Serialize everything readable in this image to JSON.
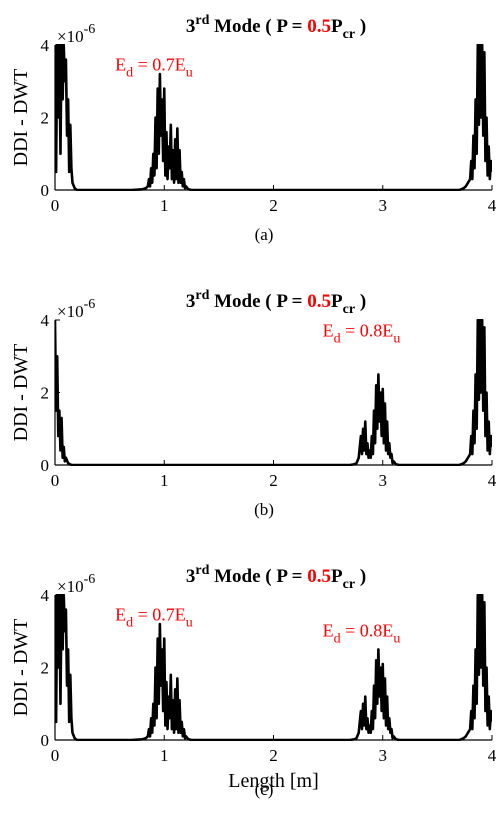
{
  "figure": {
    "xlabel": "Length [m]",
    "ylabel": "DDI - DWT",
    "y_multiplier": "×10",
    "y_multiplier_exp": "-6",
    "xticks": [
      "0",
      "1",
      "2",
      "3",
      "4"
    ],
    "yticks": [
      "0",
      "2",
      "4"
    ]
  },
  "chart_data": [
    {
      "type": "line",
      "panel_label": "(a)",
      "title": {
        "mode_num": "3",
        "mode_sup": "rd",
        "mode_word": " Mode ( P = ",
        "ratio": "0.5",
        "p": "P",
        "p_sub": "cr",
        "close": " )"
      },
      "xlim": [
        0,
        4
      ],
      "ylim": [
        0,
        4
      ],
      "ylabel": "DDI - DWT",
      "xlabel": "",
      "annotations": [
        {
          "x": 0.55,
          "y": 3.3,
          "pre": "E",
          "sub_d": "d",
          "mid": " = 0.7E",
          "sub_u": "u"
        }
      ],
      "series": [
        {
          "color": "#000000",
          "x": [
            0,
            0.01,
            0.02,
            0.03,
            0.04,
            0.05,
            0.06,
            0.07,
            0.08,
            0.09,
            0.1,
            0.11,
            0.12,
            0.13,
            0.14,
            0.15,
            0.16,
            0.18,
            0.2,
            0.25,
            0.3,
            0.5,
            0.7,
            0.8,
            0.83,
            0.85,
            0.86,
            0.87,
            0.88,
            0.89,
            0.9,
            0.91,
            0.92,
            0.93,
            0.94,
            0.95,
            0.96,
            0.97,
            0.98,
            0.99,
            1,
            1.01,
            1.02,
            1.03,
            1.04,
            1.05,
            1.06,
            1.07,
            1.08,
            1.09,
            1.1,
            1.11,
            1.12,
            1.13,
            1.14,
            1.15,
            1.16,
            1.17,
            1.18,
            1.19,
            1.2,
            1.22,
            1.25,
            1.3,
            1.5,
            2,
            2.5,
            3,
            3.5,
            3.7,
            3.72,
            3.74,
            3.76,
            3.78,
            3.8,
            3.81,
            3.82,
            3.83,
            3.84,
            3.85,
            3.86,
            3.87,
            3.88,
            3.89,
            3.9,
            3.91,
            3.92,
            3.93,
            3.94,
            3.95,
            3.96,
            3.97,
            3.98,
            3.99,
            4
          ],
          "y": [
            4,
            0.5,
            4,
            2,
            4,
            1,
            4,
            2.5,
            4,
            3,
            3.6,
            1.5,
            2.5,
            0.5,
            1.8,
            0.6,
            0.2,
            0.05,
            0,
            0,
            0,
            0,
            0,
            0.02,
            0.05,
            0.1,
            0.3,
            0.1,
            0.6,
            0.2,
            1,
            0.4,
            2,
            0.6,
            2.8,
            1,
            3.2,
            1.5,
            2.5,
            0.8,
            2.8,
            0.4,
            1.6,
            0.3,
            1.2,
            0.6,
            1.8,
            0.3,
            1.1,
            0.2,
            1.4,
            0.3,
            1.7,
            0.2,
            1.1,
            0.2,
            0.5,
            0.1,
            0.3,
            0.05,
            0.1,
            0.02,
            0,
            0,
            0,
            0,
            0,
            0,
            0,
            0,
            0.02,
            0.05,
            0.1,
            0.2,
            0.3,
            0.8,
            0.3,
            1.5,
            0.6,
            2.5,
            1,
            4,
            1.8,
            4,
            2,
            4,
            1.5,
            3.8,
            0.8,
            2,
            0.4,
            1.2,
            0.3,
            0.8,
            0.5
          ]
        }
      ]
    },
    {
      "type": "line",
      "panel_label": "(b)",
      "title": {
        "mode_num": "3",
        "mode_sup": "rd",
        "mode_word": " Mode ( P = ",
        "ratio": "0.5",
        "p": "P",
        "p_sub": "cr",
        "close": " )"
      },
      "xlim": [
        0,
        4
      ],
      "ylim": [
        0,
        4
      ],
      "ylabel": "DDI - DWT",
      "xlabel": "",
      "annotations": [
        {
          "x": 2.45,
          "y": 3.55,
          "pre": "E",
          "sub_d": "d",
          "mid": " = 0.8E",
          "sub_u": "u"
        }
      ],
      "series": [
        {
          "color": "#000000",
          "x": [
            0,
            0.01,
            0.02,
            0.03,
            0.04,
            0.05,
            0.06,
            0.07,
            0.08,
            0.09,
            0.1,
            0.12,
            0.15,
            0.2,
            0.5,
            1,
            1.5,
            2,
            2.5,
            2.7,
            2.72,
            2.74,
            2.76,
            2.78,
            2.8,
            2.81,
            2.82,
            2.83,
            2.84,
            2.85,
            2.86,
            2.87,
            2.88,
            2.89,
            2.9,
            2.91,
            2.92,
            2.93,
            2.94,
            2.95,
            2.96,
            2.97,
            2.98,
            2.99,
            3,
            3.01,
            3.02,
            3.03,
            3.04,
            3.05,
            3.06,
            3.07,
            3.08,
            3.09,
            3.1,
            3.12,
            3.15,
            3.2,
            3.5,
            3.7,
            3.72,
            3.74,
            3.76,
            3.78,
            3.8,
            3.81,
            3.82,
            3.83,
            3.84,
            3.85,
            3.86,
            3.87,
            3.88,
            3.89,
            3.9,
            3.91,
            3.92,
            3.93,
            3.94,
            3.95,
            3.96,
            3.97,
            3.98,
            3.99,
            4
          ],
          "y": [
            4,
            1.5,
            3,
            0.8,
            1.5,
            0.4,
            1.3,
            0.2,
            0.5,
            0.1,
            0.2,
            0.05,
            0,
            0,
            0,
            0,
            0,
            0,
            0,
            0,
            0.01,
            0.02,
            0.05,
            0.2,
            0.8,
            0.3,
            1,
            0.4,
            1.2,
            0.3,
            0.6,
            0.2,
            0.4,
            0.2,
            0.8,
            0.3,
            1.5,
            0.6,
            2.2,
            1,
            2.5,
            1.2,
            2,
            0.8,
            2.1,
            0.6,
            1.7,
            0.4,
            1.2,
            0.3,
            0.6,
            0.2,
            0.3,
            0.05,
            0.1,
            0.02,
            0,
            0,
            0,
            0,
            0.02,
            0.05,
            0.1,
            0.2,
            0.3,
            0.8,
            0.3,
            1.5,
            0.6,
            2.5,
            1,
            4,
            1.8,
            4,
            2,
            4,
            1.5,
            3.8,
            0.8,
            2,
            0.4,
            1.2,
            0.3,
            0.8,
            0.5
          ]
        }
      ]
    },
    {
      "type": "line",
      "panel_label": "(c)",
      "title": {
        "mode_num": "3",
        "mode_sup": "rd",
        "mode_word": " Mode ( P = ",
        "ratio": "0.5",
        "p": "P",
        "p_sub": "cr",
        "close": " )"
      },
      "xlim": [
        0,
        4
      ],
      "ylim": [
        0,
        4
      ],
      "ylabel": "DDI - DWT",
      "xlabel": "Length [m]",
      "annotations": [
        {
          "x": 0.55,
          "y": 3.3,
          "pre": "E",
          "sub_d": "d",
          "mid": " = 0.7E",
          "sub_u": "u"
        },
        {
          "x": 2.45,
          "y": 2.85,
          "pre": "E",
          "sub_d": "d",
          "mid": " = 0.8E",
          "sub_u": "u"
        }
      ],
      "series": [
        {
          "color": "#000000",
          "x": [
            0,
            0.01,
            0.02,
            0.03,
            0.04,
            0.05,
            0.06,
            0.07,
            0.08,
            0.09,
            0.1,
            0.11,
            0.12,
            0.13,
            0.14,
            0.15,
            0.16,
            0.18,
            0.2,
            0.25,
            0.3,
            0.5,
            0.7,
            0.8,
            0.83,
            0.85,
            0.86,
            0.87,
            0.88,
            0.89,
            0.9,
            0.91,
            0.92,
            0.93,
            0.94,
            0.95,
            0.96,
            0.97,
            0.98,
            0.99,
            1,
            1.01,
            1.02,
            1.03,
            1.04,
            1.05,
            1.06,
            1.07,
            1.08,
            1.09,
            1.1,
            1.11,
            1.12,
            1.13,
            1.14,
            1.15,
            1.16,
            1.17,
            1.18,
            1.19,
            1.2,
            1.22,
            1.25,
            1.3,
            1.5,
            2,
            2.5,
            2.7,
            2.72,
            2.74,
            2.76,
            2.78,
            2.8,
            2.81,
            2.82,
            2.83,
            2.84,
            2.85,
            2.86,
            2.87,
            2.88,
            2.89,
            2.9,
            2.91,
            2.92,
            2.93,
            2.94,
            2.95,
            2.96,
            2.97,
            2.98,
            2.99,
            3,
            3.01,
            3.02,
            3.03,
            3.04,
            3.05,
            3.06,
            3.07,
            3.08,
            3.09,
            3.1,
            3.12,
            3.15,
            3.2,
            3.5,
            3.7,
            3.72,
            3.74,
            3.76,
            3.78,
            3.8,
            3.81,
            3.82,
            3.83,
            3.84,
            3.85,
            3.86,
            3.87,
            3.88,
            3.89,
            3.9,
            3.91,
            3.92,
            3.93,
            3.94,
            3.95,
            3.96,
            3.97,
            3.98,
            3.99,
            4
          ],
          "y": [
            4,
            0.5,
            4,
            2,
            4,
            1,
            4,
            2.5,
            4,
            3,
            3.6,
            1.5,
            2.5,
            0.5,
            1.8,
            0.6,
            0.2,
            0.05,
            0,
            0,
            0,
            0,
            0,
            0.02,
            0.05,
            0.1,
            0.3,
            0.1,
            0.6,
            0.2,
            1,
            0.4,
            2,
            0.6,
            2.8,
            1,
            3.2,
            1.5,
            2.5,
            0.8,
            2.8,
            0.4,
            1.6,
            0.3,
            1.2,
            0.6,
            1.8,
            0.3,
            1.1,
            0.2,
            1.4,
            0.3,
            1.7,
            0.2,
            1.1,
            0.2,
            0.5,
            0.1,
            0.3,
            0.05,
            0.1,
            0.02,
            0,
            0,
            0,
            0,
            0,
            0,
            0.01,
            0.02,
            0.05,
            0.2,
            0.8,
            0.3,
            1,
            0.4,
            1.2,
            0.3,
            0.6,
            0.2,
            0.4,
            0.2,
            0.8,
            0.3,
            1.5,
            0.6,
            2.2,
            1,
            2.5,
            1.2,
            2,
            0.8,
            2.1,
            0.6,
            1.7,
            0.4,
            1.2,
            0.3,
            0.6,
            0.2,
            0.3,
            0.05,
            0.1,
            0.02,
            0,
            0,
            0,
            0,
            0.02,
            0.05,
            0.1,
            0.2,
            0.3,
            0.8,
            0.3,
            1.5,
            0.6,
            2.5,
            1,
            4,
            1.8,
            4,
            2,
            4,
            1.5,
            3.8,
            0.8,
            2,
            0.4,
            1.2,
            0.3,
            0.8,
            0.5
          ]
        }
      ]
    }
  ],
  "colors": {
    "line": "#000000",
    "accent": "#ff0000",
    "axis": "#000000"
  }
}
